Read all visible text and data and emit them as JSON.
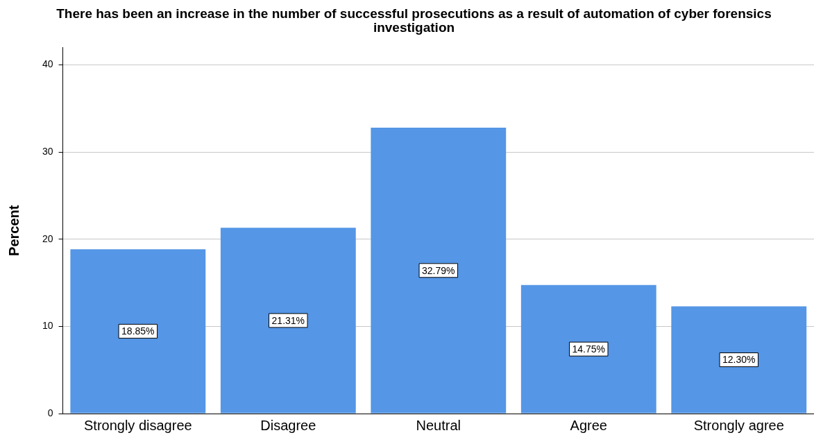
{
  "chart_data": {
    "type": "bar",
    "title": "There has been an increase in the number of successful prosecutions as a result of automation of cyber forensics investigation",
    "ylabel": "Percent",
    "categories": [
      "Strongly disagree",
      "Disagree",
      "Neutral",
      "Agree",
      "Strongly agree"
    ],
    "values": [
      18.85,
      21.31,
      32.79,
      14.75,
      12.3
    ],
    "value_labels": [
      "18.85%",
      "21.31%",
      "32.79%",
      "14.75%",
      "12.30%"
    ],
    "color": "#5596e6",
    "ylim": [
      0,
      42
    ],
    "yticks": [
      0,
      10,
      20,
      30,
      40
    ],
    "grid": "y",
    "legend": false
  }
}
